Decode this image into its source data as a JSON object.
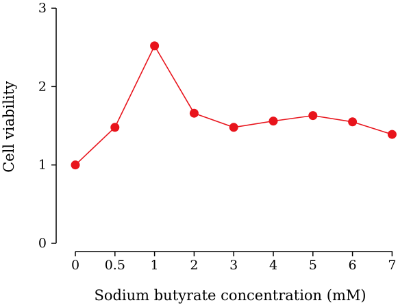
{
  "chart_data": {
    "type": "line",
    "title": "",
    "xlabel": "Sodium butyrate concentration (mM)",
    "ylabel": "Cell viability",
    "categories": [
      "0",
      "0.5",
      "1",
      "2",
      "3",
      "4",
      "5",
      "6",
      "7"
    ],
    "yticks": [
      "0",
      "1",
      "2",
      "3"
    ],
    "ylim": [
      0,
      3
    ],
    "grid": false,
    "series": [
      {
        "values": [
          1.0,
          1.48,
          2.52,
          1.66,
          1.48,
          1.56,
          1.63,
          1.55,
          1.39
        ],
        "color": "#e8141c"
      }
    ]
  }
}
